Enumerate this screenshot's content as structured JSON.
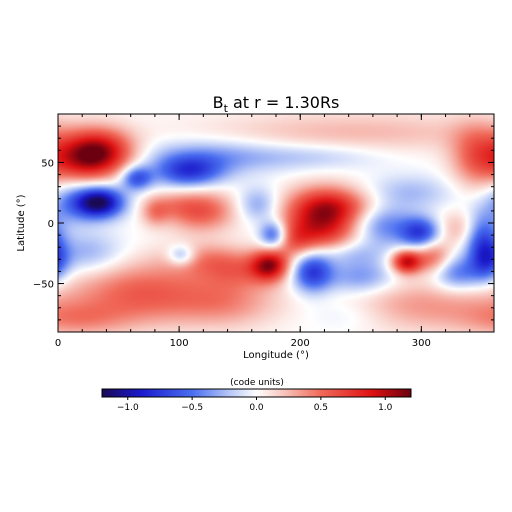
{
  "chart_data": {
    "type": "heatmap",
    "title": {
      "main": "B",
      "sub": "t",
      "rest": " at r = 1.30Rs"
    },
    "xlabel": "Longitude (°)",
    "ylabel": "Latitude (°)",
    "xlim": [
      0,
      360
    ],
    "ylim": [
      -90,
      90
    ],
    "xticks": [
      0,
      100,
      200,
      300
    ],
    "xtick_labels": [
      "0",
      "100",
      "200",
      "300"
    ],
    "yticks": [
      -50,
      0,
      50
    ],
    "ytick_labels": [
      "−50",
      "0",
      "50"
    ],
    "colorscale": {
      "range": [
        -1.2,
        1.2
      ],
      "stops": [
        {
          "v": -1.2,
          "color": "#1a0a55"
        },
        {
          "v": -0.9,
          "color": "#1a1acc"
        },
        {
          "v": -0.5,
          "color": "#4a6ef0"
        },
        {
          "v": -0.2,
          "color": "#b9c9f7"
        },
        {
          "v": 0.0,
          "color": "#ffffff"
        },
        {
          "v": 0.2,
          "color": "#f8c8c0"
        },
        {
          "v": 0.5,
          "color": "#f06a5a"
        },
        {
          "v": 0.9,
          "color": "#dd1111"
        },
        {
          "v": 1.2,
          "color": "#6a0010"
        }
      ]
    },
    "colorbar": {
      "label": "(code units)",
      "ticks": [
        -1.0,
        -0.5,
        0.0,
        0.5,
        1.0
      ],
      "tick_labels": [
        "−1.0",
        "−0.5",
        "0.0",
        "0.5",
        "1.0"
      ]
    },
    "features": [
      {
        "lon": 35,
        "lat": 58,
        "value": 1.0,
        "slon": 20,
        "slat": 13
      },
      {
        "lon": 15,
        "lat": 50,
        "value": 0.5,
        "slon": 18,
        "slat": 15
      },
      {
        "lon": 34,
        "lat": 17,
        "value": -1.2,
        "slon": 14,
        "slat": 9
      },
      {
        "lon": 10,
        "lat": 18,
        "value": -0.35,
        "slon": 14,
        "slat": 14
      },
      {
        "lon": 65,
        "lat": 37,
        "value": -0.65,
        "slon": 9,
        "slat": 7
      },
      {
        "lon": 108,
        "lat": 42,
        "value": -0.7,
        "slon": 20,
        "slat": 9
      },
      {
        "lon": 125,
        "lat": 55,
        "value": -0.35,
        "slon": 40,
        "slat": 10
      },
      {
        "lon": 210,
        "lat": 55,
        "value": -0.2,
        "slon": 40,
        "slat": 8
      },
      {
        "lon": 245,
        "lat": 75,
        "value": 0.25,
        "slon": 90,
        "slat": 12
      },
      {
        "lon": 345,
        "lat": 55,
        "value": 0.5,
        "slon": 15,
        "slat": 18
      },
      {
        "lon": 290,
        "lat": 25,
        "value": -0.25,
        "slon": 25,
        "slat": 10
      },
      {
        "lon": 90,
        "lat": 15,
        "value": 0.2,
        "slon": 15,
        "slat": 8
      },
      {
        "lon": 118,
        "lat": 10,
        "value": 0.6,
        "slon": 20,
        "slat": 12
      },
      {
        "lon": 80,
        "lat": 8,
        "value": 0.3,
        "slon": 8,
        "slat": 8
      },
      {
        "lon": 165,
        "lat": 15,
        "value": -0.35,
        "slon": 12,
        "slat": 10
      },
      {
        "lon": 178,
        "lat": -10,
        "value": -0.7,
        "slon": 8,
        "slat": 8
      },
      {
        "lon": 218,
        "lat": 0,
        "value": 0.95,
        "slon": 22,
        "slat": 18
      },
      {
        "lon": 230,
        "lat": 15,
        "value": 0.4,
        "slon": 25,
        "slat": 10
      },
      {
        "lon": 195,
        "lat": -15,
        "value": 0.35,
        "slon": 12,
        "slat": 10
      },
      {
        "lon": 268,
        "lat": -2,
        "value": -0.45,
        "slon": 18,
        "slat": 12
      },
      {
        "lon": 300,
        "lat": -8,
        "value": -0.75,
        "slon": 12,
        "slat": 9
      },
      {
        "lon": 240,
        "lat": -25,
        "value": -0.3,
        "slon": 20,
        "slat": 8
      },
      {
        "lon": 350,
        "lat": -12,
        "value": -0.6,
        "slon": 10,
        "slat": 15
      },
      {
        "lon": 330,
        "lat": -5,
        "value": 0.3,
        "slon": 15,
        "slat": 10
      },
      {
        "lon": 125,
        "lat": -30,
        "value": 0.35,
        "slon": 25,
        "slat": 10
      },
      {
        "lon": 102,
        "lat": -27,
        "value": -0.45,
        "slon": 8,
        "slat": 6
      },
      {
        "lon": 25,
        "lat": -25,
        "value": -0.3,
        "slon": 20,
        "slat": 12
      },
      {
        "lon": 175,
        "lat": -35,
        "value": 0.95,
        "slon": 11,
        "slat": 9
      },
      {
        "lon": 150,
        "lat": -40,
        "value": 0.3,
        "slon": 20,
        "slat": 10
      },
      {
        "lon": 210,
        "lat": -40,
        "value": -0.8,
        "slon": 12,
        "slat": 12
      },
      {
        "lon": 250,
        "lat": -45,
        "value": -0.4,
        "slon": 20,
        "slat": 10
      },
      {
        "lon": 288,
        "lat": -32,
        "value": 1.0,
        "slon": 9,
        "slat": 7
      },
      {
        "lon": 310,
        "lat": -28,
        "value": 0.5,
        "slon": 10,
        "slat": 10
      },
      {
        "lon": 330,
        "lat": -42,
        "value": -0.5,
        "slon": 15,
        "slat": 10
      },
      {
        "lon": 355,
        "lat": -32,
        "value": -0.55,
        "slon": 10,
        "slat": 12
      },
      {
        "lon": 70,
        "lat": -58,
        "value": 0.55,
        "slon": 40,
        "slat": 18
      },
      {
        "lon": 140,
        "lat": -65,
        "value": 0.35,
        "slon": 30,
        "slat": 15
      },
      {
        "lon": 300,
        "lat": -68,
        "value": 0.35,
        "slon": 50,
        "slat": 15
      },
      {
        "lon": 240,
        "lat": -75,
        "value": -0.15,
        "slon": 25,
        "slat": 10
      },
      {
        "lon": 15,
        "lat": -80,
        "value": 0.3,
        "slon": 30,
        "slat": 10
      }
    ]
  }
}
